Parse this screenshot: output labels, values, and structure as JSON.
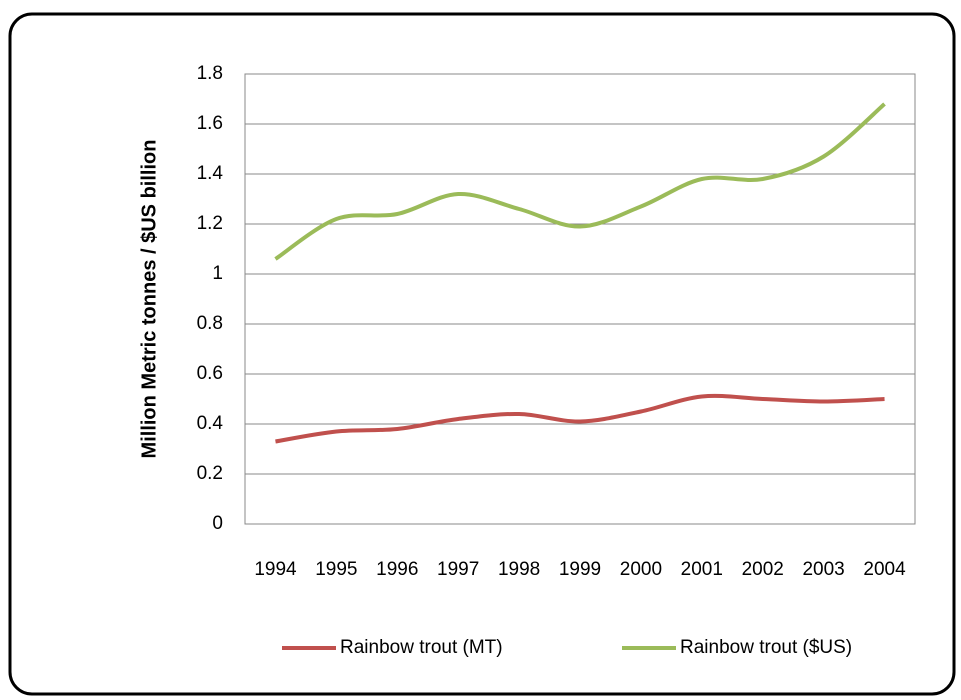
{
  "chart_data": {
    "type": "line",
    "y_label": "Million Metric tonnes / $US billion",
    "categories": [
      "1994",
      "1995",
      "1996",
      "1997",
      "1998",
      "1999",
      "2000",
      "2001",
      "2002",
      "2003",
      "2004"
    ],
    "series": [
      {
        "name": "Rainbow trout (MT)",
        "color": "#c0504d",
        "values": [
          0.33,
          0.37,
          0.38,
          0.42,
          0.44,
          0.41,
          0.45,
          0.51,
          0.5,
          0.49,
          0.5
        ]
      },
      {
        "name": "Rainbow trout ($US)",
        "color": "#9bbb59",
        "values": [
          1.06,
          1.22,
          1.24,
          1.32,
          1.26,
          1.19,
          1.27,
          1.38,
          1.38,
          1.47,
          1.68
        ]
      }
    ],
    "ylim": [
      0,
      1.8
    ],
    "yticks": [
      0,
      0.2,
      0.4,
      0.6,
      0.8,
      1,
      1.2,
      1.4,
      1.6,
      1.8
    ],
    "grid": true,
    "smooth": true,
    "legend": "bottom"
  }
}
